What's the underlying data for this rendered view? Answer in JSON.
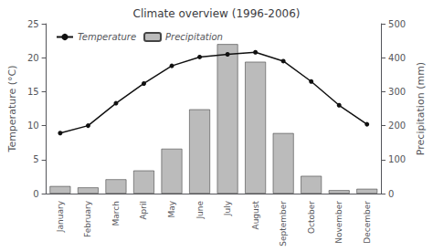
{
  "chart_data": {
    "type": "combo",
    "title": "Climate overview (1996-2006)",
    "categories": [
      "January",
      "February",
      "March",
      "April",
      "May",
      "June",
      "July",
      "August",
      "September",
      "October",
      "November",
      "December"
    ],
    "series": [
      {
        "name": "Temperature",
        "type": "line",
        "color": "#111111",
        "marker": "circle",
        "values": [
          8.9,
          10.0,
          13.3,
          16.2,
          18.8,
          20.1,
          20.5,
          20.8,
          19.5,
          16.5,
          13.0,
          10.2
        ]
      },
      {
        "name": "Precipitation",
        "type": "bar",
        "axis": "y2",
        "color": "#bbbbbb",
        "values": [
          22,
          18,
          42,
          68,
          132,
          248,
          440,
          388,
          178,
          52,
          10,
          14
        ]
      }
    ],
    "ylabel": "Temperature (°C)",
    "y2label": "Precipitation (mm)",
    "ylim": [
      0,
      25
    ],
    "yticks": [
      0,
      5,
      10,
      15,
      20,
      25
    ],
    "y2lim": [
      0,
      500
    ],
    "y2ticks": [
      0,
      100,
      200,
      300,
      400,
      500
    ],
    "grid": false,
    "legend": "upper left"
  }
}
